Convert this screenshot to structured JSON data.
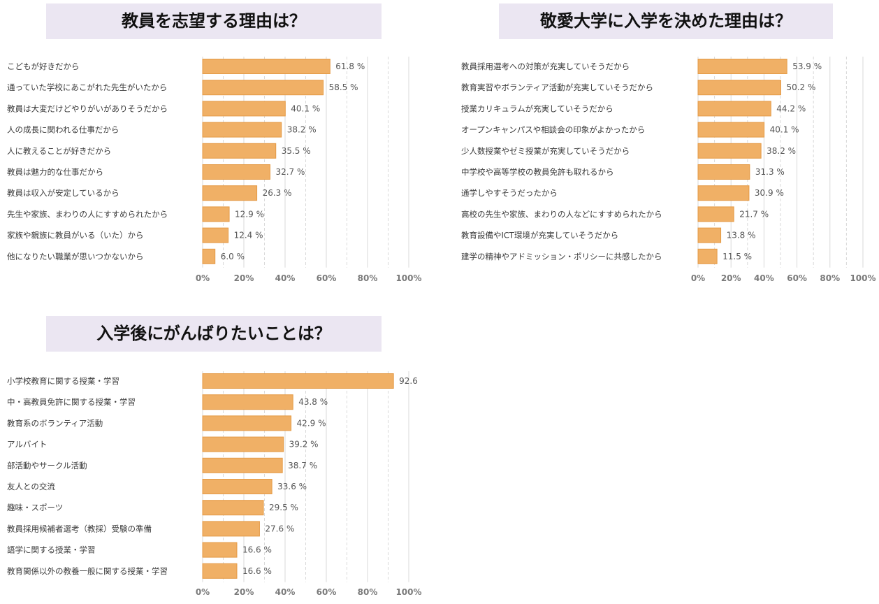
{
  "chart_data": [
    {
      "type": "bar",
      "orientation": "horizontal",
      "title": "教員を志望する理由は？",
      "categories": [
        "こどもが好きだから",
        "通っていた学校にあこがれた先生がいたから",
        "教員は大変だけどやりがいがありそうだから",
        "人の成長に関われる仕事だから",
        "人に教えることが好きだから",
        "教員は魅力的な仕事だから",
        "教員は収入が安定しているから",
        "先生や家族、まわりの人にすすめられたから",
        "家族や親族に教員がいる（いた）から",
        "他になりたい職業が思いつかないから"
      ],
      "values": [
        61.8,
        58.5,
        40.1,
        38.2,
        35.5,
        32.7,
        26.3,
        12.9,
        12.4,
        6.0
      ],
      "value_labels": [
        "61.8 %",
        "58.5 %",
        "40.1 %",
        "38.2 %",
        "35.5 %",
        "32.7 %",
        "26.3 %",
        "12.9 %",
        "12.4 %",
        "6.0 %"
      ],
      "xlim": [
        0,
        100
      ],
      "ticks": [
        "0%",
        "20%",
        "40%",
        "60%",
        "80%",
        "100%"
      ],
      "grid": true
    },
    {
      "type": "bar",
      "orientation": "horizontal",
      "title": "敬愛大学に入学を決めた理由は？",
      "categories": [
        "教員採用選考への対策が充実していそうだから",
        "教育実習やボランティア活動が充実していそうだから",
        "授業カリキュラムが充実していそうだから",
        "オープンキャンパスや相談会の印象がよかったから",
        "少人数授業やゼミ授業が充実していそうだから",
        "中学校や高等学校の教員免許も取れるから",
        "通学しやすそうだったから",
        "高校の先生や家族、まわりの人などにすすめられたから",
        "教育設備やICT環境が充実していそうだから",
        "建学の精神やアドミッション・ポリシーに共感したから"
      ],
      "values": [
        53.9,
        50.2,
        44.2,
        40.1,
        38.2,
        31.3,
        30.9,
        21.7,
        13.8,
        11.5
      ],
      "value_labels": [
        "53.9 %",
        "50.2 %",
        "44.2 %",
        "40.1 %",
        "38.2 %",
        "31.3 %",
        "30.9 %",
        "21.7 %",
        "13.8 %",
        "11.5 %"
      ],
      "xlim": [
        0,
        100
      ],
      "ticks": [
        "0%",
        "20%",
        "40%",
        "60%",
        "80%",
        "100%"
      ],
      "grid": true
    },
    {
      "type": "bar",
      "orientation": "horizontal",
      "title": "入学後にがんばりたいことは？",
      "categories": [
        "小学校教育に関する授業・学習",
        "中・高教員免許に関する授業・学習",
        "教育系のボランティア活動",
        "アルバイト",
        "部活動やサークル活動",
        "友人との交流",
        "趣味・スポーツ",
        "教員採用候補者選考（教採）受験の準備",
        "語学に関する授業・学習",
        "教育関係以外の教養一般に関する授業・学習"
      ],
      "values": [
        92.6,
        43.8,
        42.9,
        39.2,
        38.7,
        33.6,
        29.5,
        27.6,
        16.6,
        16.6
      ],
      "value_labels": [
        "92.6",
        "43.8 %",
        "42.9 %",
        "39.2 %",
        "38.7 %",
        "33.6 %",
        "29.5 %",
        "27.6 %",
        "16.6 %",
        "16.6 %"
      ],
      "xlim": [
        0,
        100
      ],
      "ticks": [
        "0%",
        "20%",
        "40%",
        "60%",
        "80%",
        "100%"
      ],
      "grid": true
    }
  ],
  "colors": {
    "bar_fill": "#f0b066",
    "bar_stroke": "#e49a45",
    "grid_solid": "#d9d9d9",
    "grid_dashed": "#d9d9d9",
    "title_bg": "#ebe6f2"
  }
}
